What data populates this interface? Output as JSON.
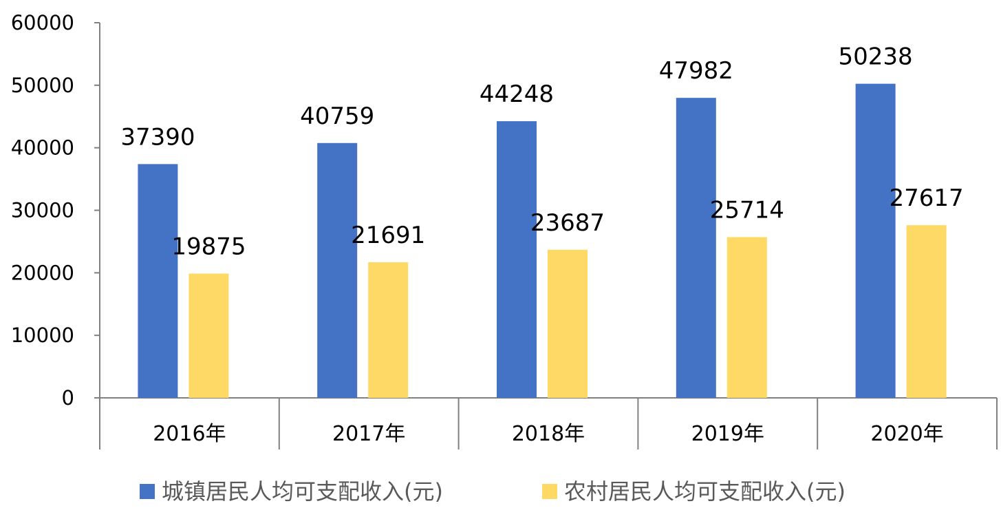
{
  "chart_data": {
    "type": "bar",
    "categories": [
      "2016年",
      "2017年",
      "2018年",
      "2019年",
      "2020年"
    ],
    "series": [
      {
        "name": "城镇居民人均可支配收入(元)",
        "values": [
          37390,
          40759,
          44248,
          47982,
          50238
        ],
        "color": "#4472C4"
      },
      {
        "name": "农村居民人均可支配收入(元)",
        "values": [
          19875,
          21691,
          23687,
          25714,
          27617
        ],
        "color": "#FFD966"
      }
    ],
    "ylim": [
      0,
      60000
    ],
    "yticks": [
      0,
      10000,
      20000,
      30000,
      40000,
      50000,
      60000
    ],
    "grid": false,
    "legend": "bottom",
    "data_labels": true
  }
}
